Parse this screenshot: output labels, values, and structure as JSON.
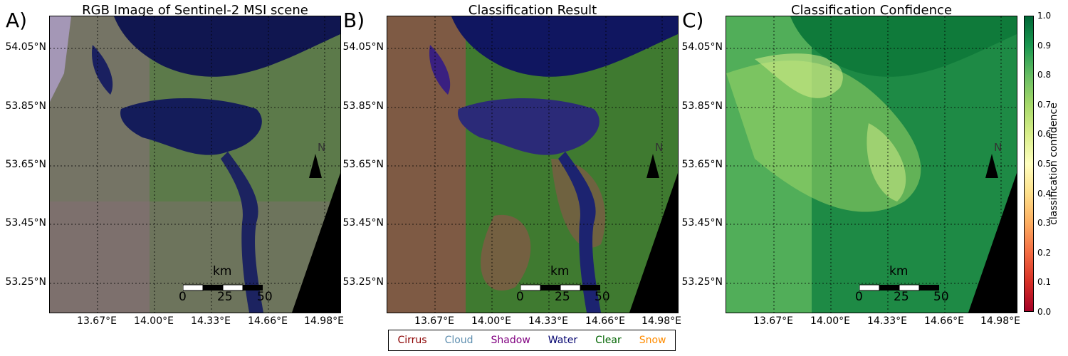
{
  "panels": [
    {
      "letter": "A)",
      "title": "RGB Image of Sentinel-2 MSI scene"
    },
    {
      "letter": "B)",
      "title": "Classification Result"
    },
    {
      "letter": "C)",
      "title": "Classification Confidence"
    }
  ],
  "lat_labels": [
    "54.05°N",
    "53.85°N",
    "53.65°N",
    "53.45°N",
    "53.25°N"
  ],
  "lon_labels": [
    "13.67°E",
    "14.00°E",
    "14.33°E",
    "14.66°E",
    "14.98°E"
  ],
  "north_label": "N",
  "scale": {
    "unit": "km",
    "ticks": [
      "0",
      "25",
      "50"
    ]
  },
  "legend": [
    {
      "label": "Cirrus",
      "color": "#8b0000"
    },
    {
      "label": "Cloud",
      "color": "#5f8fb0"
    },
    {
      "label": "Shadow",
      "color": "#800080"
    },
    {
      "label": "Water",
      "color": "#00006e"
    },
    {
      "label": "Clear",
      "color": "#006400"
    },
    {
      "label": "Snow",
      "color": "#ff8c00"
    }
  ],
  "colorbar": {
    "label": "classification confidence",
    "ticks": [
      "1.0",
      "0.9",
      "0.8",
      "0.7",
      "0.6",
      "0.5",
      "0.4",
      "0.3",
      "0.2",
      "0.1",
      "0.0"
    ]
  }
}
